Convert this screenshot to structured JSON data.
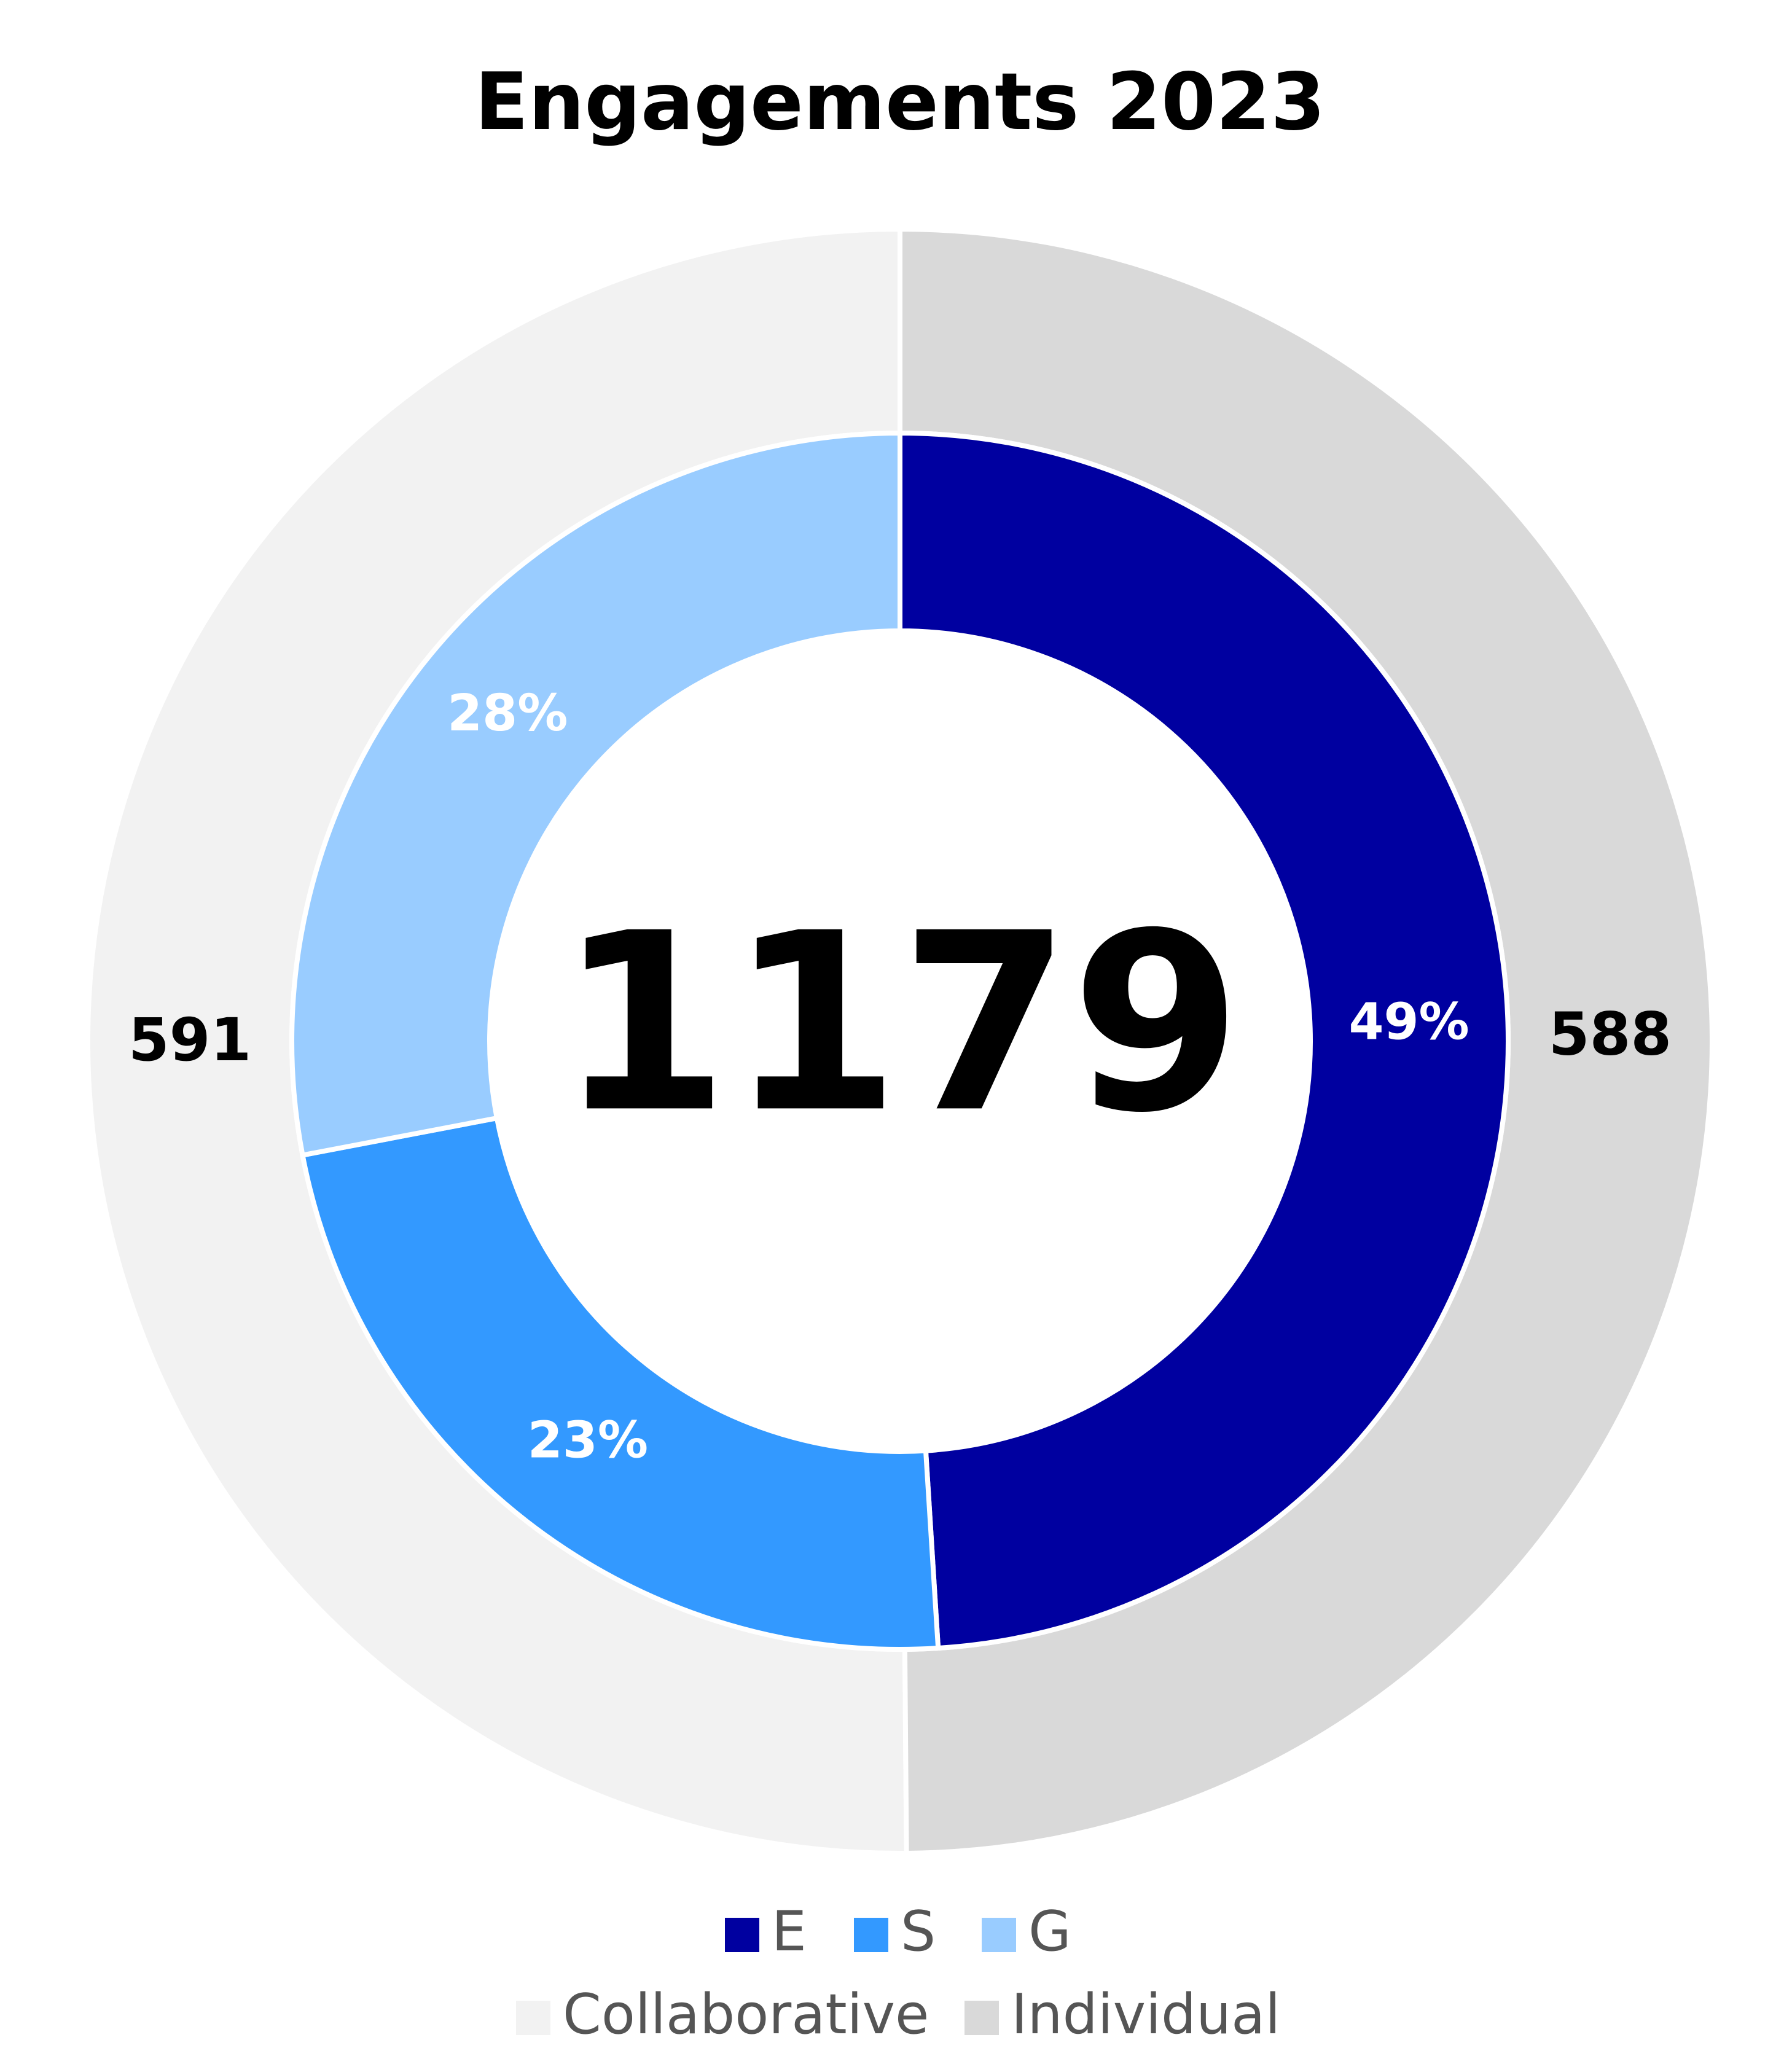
{
  "chart_data": {
    "type": "donut",
    "title": "Engagements 2023",
    "center_label": 1179,
    "inner": {
      "categories": [
        "E",
        "S",
        "G"
      ],
      "values": [
        49,
        23,
        28
      ],
      "value_labels": [
        "49%",
        "23%",
        "28%"
      ],
      "colors": [
        "#0000a0",
        "#3399ff",
        "#99ccff"
      ]
    },
    "outer": {
      "categories": [
        "Collaborative",
        "Individual"
      ],
      "values": [
        591,
        588
      ],
      "colors": [
        "#f2f2f2",
        "#d9d9d9"
      ]
    }
  }
}
